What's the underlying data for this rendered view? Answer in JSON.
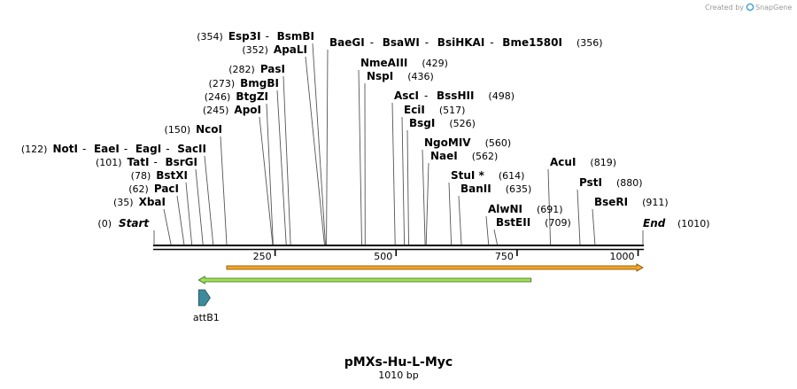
{
  "map": {
    "name": "pMXs-Hu-L-Myc",
    "length_label": "1010 bp",
    "start_label": "Start",
    "start_pos": "(0)",
    "end_label": "End",
    "end_pos": "(1010)",
    "credit": "Created by",
    "brand": "SnapGene",
    "ticks": [
      {
        "label": "250",
        "bp": 250
      },
      {
        "label": "500",
        "bp": 500
      },
      {
        "label": "750",
        "bp": 750
      },
      {
        "label": "1000",
        "bp": 1000
      }
    ],
    "sites": [
      {
        "bp": 35,
        "pos": "(35)",
        "enzymes": [
          "XbaI"
        ]
      },
      {
        "bp": 62,
        "pos": "(62)",
        "enzymes": [
          "PacI"
        ]
      },
      {
        "bp": 78,
        "pos": "(78)",
        "enzymes": [
          "BstXI"
        ]
      },
      {
        "bp": 101,
        "pos": "(101)",
        "enzymes": [
          "TatI",
          "BsrGI"
        ]
      },
      {
        "bp": 122,
        "pos": "(122)",
        "enzymes": [
          "NotI",
          "EaeI",
          "EagI",
          "SacII"
        ]
      },
      {
        "bp": 150,
        "pos": "(150)",
        "enzymes": [
          "NcoI"
        ]
      },
      {
        "bp": 245,
        "pos": "(245)",
        "enzymes": [
          "ApoI"
        ]
      },
      {
        "bp": 246,
        "pos": "(246)",
        "enzymes": [
          "BtgZI"
        ]
      },
      {
        "bp": 273,
        "pos": "(273)",
        "enzymes": [
          "BmgBI"
        ]
      },
      {
        "bp": 282,
        "pos": "(282)",
        "enzymes": [
          "PasI"
        ]
      },
      {
        "bp": 352,
        "pos": "(352)",
        "enzymes": [
          "ApaLI"
        ]
      },
      {
        "bp": 354,
        "pos": "(354)",
        "enzymes": [
          "Esp3I",
          "BsmBI"
        ]
      },
      {
        "bp": 356,
        "pos": "(356)",
        "enzymes": [
          "BaeGI",
          "BsaWI",
          "BsiHKAI",
          "Bme1580I"
        ]
      },
      {
        "bp": 429,
        "pos": "(429)",
        "enzymes": [
          "NmeAIII"
        ]
      },
      {
        "bp": 436,
        "pos": "(436)",
        "enzymes": [
          "NspI"
        ]
      },
      {
        "bp": 498,
        "pos": "(498)",
        "enzymes": [
          "AscI",
          "BssHII"
        ]
      },
      {
        "bp": 517,
        "pos": "(517)",
        "enzymes": [
          "EciI"
        ]
      },
      {
        "bp": 526,
        "pos": "(526)",
        "enzymes": [
          "BsgI"
        ]
      },
      {
        "bp": 560,
        "pos": "(560)",
        "enzymes": [
          "NgoMIV"
        ]
      },
      {
        "bp": 562,
        "pos": "(562)",
        "enzymes": [
          "NaeI"
        ]
      },
      {
        "bp": 614,
        "pos": "(614)",
        "enzymes": [
          "StuI *"
        ]
      },
      {
        "bp": 635,
        "pos": "(635)",
        "enzymes": [
          "BanII"
        ]
      },
      {
        "bp": 691,
        "pos": "(691)",
        "enzymes": [
          "AlwNI"
        ]
      },
      {
        "bp": 709,
        "pos": "(709)",
        "enzymes": [
          "BstEII"
        ]
      },
      {
        "bp": 819,
        "pos": "(819)",
        "enzymes": [
          "AcuI"
        ]
      },
      {
        "bp": 880,
        "pos": "(880)",
        "enzymes": [
          "PstI"
        ]
      },
      {
        "bp": 911,
        "pos": "(911)",
        "enzymes": [
          "BseRI"
        ]
      }
    ],
    "features": [
      {
        "name": "orange-feature",
        "start_bp": 150,
        "end_bp": 1010,
        "direction": "forward",
        "fill": "#f5a623",
        "stroke": "#7a4a00"
      },
      {
        "name": "green-feature",
        "start_bp": 92,
        "end_bp": 779,
        "direction": "reverse",
        "fill": "#a6e05a",
        "stroke": "#2f6b1a"
      },
      {
        "name": "attB1",
        "label": "attB1",
        "start_bp": 92,
        "end_bp": 116,
        "direction": "forward",
        "fill": "#3e8a9c",
        "stroke": "#1d4f5c"
      }
    ],
    "colors": {
      "backbone": "#000000",
      "brand": "#3d9bd6"
    }
  }
}
